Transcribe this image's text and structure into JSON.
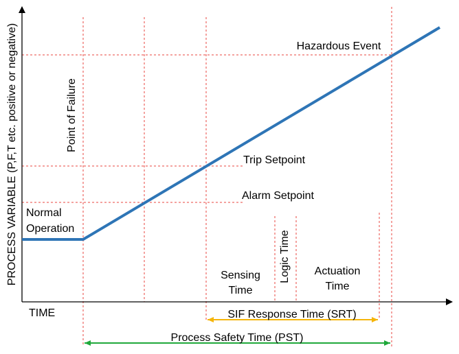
{
  "axes": {
    "y_label": "PROCESS VARIABLE (P,F,T etc. positive or negative)",
    "x_label": "TIME"
  },
  "levels": {
    "hazardous_event": "Hazardous Event",
    "trip_setpoint": "Trip Setpoint",
    "alarm_setpoint": "Alarm Setpoint"
  },
  "events": {
    "point_of_failure": "Point of Failure",
    "normal_operation": [
      "Normal",
      "Operation"
    ]
  },
  "phases": {
    "sensing_time": [
      "Sensing",
      "Time"
    ],
    "logic_time": "Logic Time",
    "actuation_time": [
      "Actuation",
      "Time"
    ]
  },
  "spans": {
    "srt": "SIF Response Time (SRT)",
    "pst": "Process Safety Time (PST)"
  }
}
